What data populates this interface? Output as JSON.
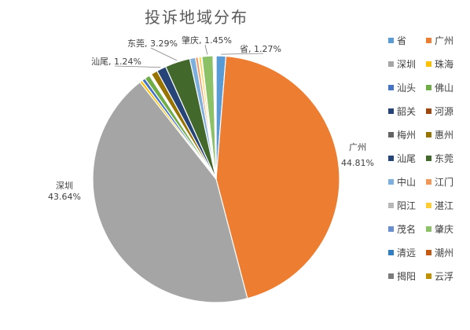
{
  "chart_data": {
    "type": "pie",
    "title": "投诉地域分布",
    "slices": [
      {
        "label": "省",
        "value": 1.27,
        "color": "#5B9BD5",
        "label_text": "省, 1.27%"
      },
      {
        "label": "广州",
        "value": 44.81,
        "color": "#ED7D31",
        "label_text": "广州",
        "pct_text": "44.81%"
      },
      {
        "label": "深圳",
        "value": 43.64,
        "color": "#A5A5A5",
        "label_text": "深圳",
        "pct_text": "43.64%"
      },
      {
        "label": "珠海",
        "value": 0.35,
        "color": "#FFC000"
      },
      {
        "label": "汕头",
        "value": 0.45,
        "color": "#4472C4"
      },
      {
        "label": "佛山",
        "value": 0.7,
        "color": "#70AD47"
      },
      {
        "label": "韶关",
        "value": 0.1,
        "color": "#264478"
      },
      {
        "label": "河源",
        "value": 0.1,
        "color": "#9E480E"
      },
      {
        "label": "梅州",
        "value": 0.1,
        "color": "#636363"
      },
      {
        "label": "惠州",
        "value": 0.85,
        "color": "#997300"
      },
      {
        "label": "汕尾",
        "value": 1.24,
        "color": "#264478",
        "label_text": "汕尾, 1.24%"
      },
      {
        "label": "东莞",
        "value": 3.29,
        "color": "#43682B",
        "label_text": "东莞, 3.29%"
      },
      {
        "label": "中山",
        "value": 0.75,
        "color": "#7CAFDD"
      },
      {
        "label": "江门",
        "value": 0.35,
        "color": "#F1975A"
      },
      {
        "label": "阳江",
        "value": 0.1,
        "color": "#B7B7B7"
      },
      {
        "label": "湛江",
        "value": 0.3,
        "color": "#FFCD33"
      },
      {
        "label": "茂名",
        "value": 0.1,
        "color": "#698ED0"
      },
      {
        "label": "肇庆",
        "value": 1.45,
        "color": "#8CC168",
        "label_text": "肇庆, 1.45%"
      },
      {
        "label": "清远",
        "value": 0.1,
        "color": "#327EC2"
      },
      {
        "label": "潮州",
        "value": 0.1,
        "color": "#C65911"
      },
      {
        "label": "揭阳",
        "value": 0.1,
        "color": "#7B7B7B"
      },
      {
        "label": "云浮",
        "value": 0.1,
        "color": "#BF9000"
      }
    ],
    "legend_position": "right"
  }
}
